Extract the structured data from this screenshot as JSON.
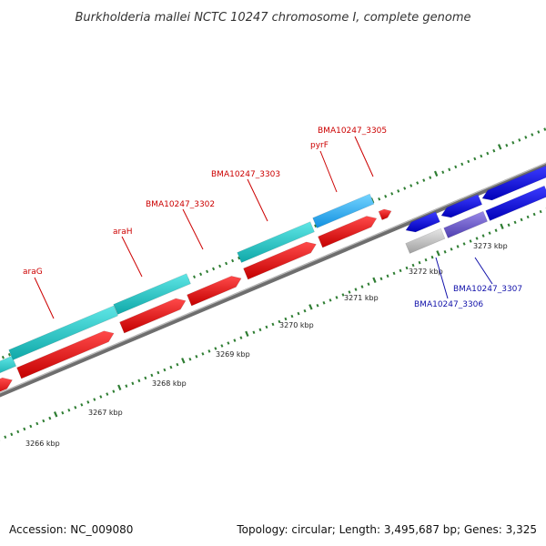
{
  "title": "Burkholderia mallei NCTC 10247 chromosome I, complete genome",
  "accession": "Accession: NC_009080",
  "summary": "Topology: circular; Length: 3,495,687 bp; Genes: 3,325",
  "tick_labels": [
    "3266 kbp",
    "3267 kbp",
    "3268 kbp",
    "3269 kbp",
    "3270 kbp",
    "3271 kbp",
    "3272 kbp",
    "3273 kbp"
  ],
  "colors": {
    "forward_cds": "#ff1a1a",
    "forward_rna": "#22cccc",
    "reverse_cds": "#1a1aff",
    "reverse_other": "#6f5fd0",
    "pseudo": "#c0c0c0",
    "backbone": "#777777",
    "tick": "#2e7d32",
    "label_forward": "#cc0000",
    "label_reverse": "#1111aa"
  },
  "gene_labels": [
    {
      "text": "araG",
      "strand": "forward"
    },
    {
      "text": "araH",
      "strand": "forward"
    },
    {
      "text": "BMA10247_3302",
      "strand": "forward"
    },
    {
      "text": "BMA10247_3303",
      "strand": "forward"
    },
    {
      "text": "pyrF",
      "strand": "forward"
    },
    {
      "text": "BMA10247_3305",
      "strand": "forward"
    },
    {
      "text": "BMA10247_3307",
      "strand": "reverse"
    },
    {
      "text": "BMA10247_3306",
      "strand": "reverse"
    }
  ]
}
